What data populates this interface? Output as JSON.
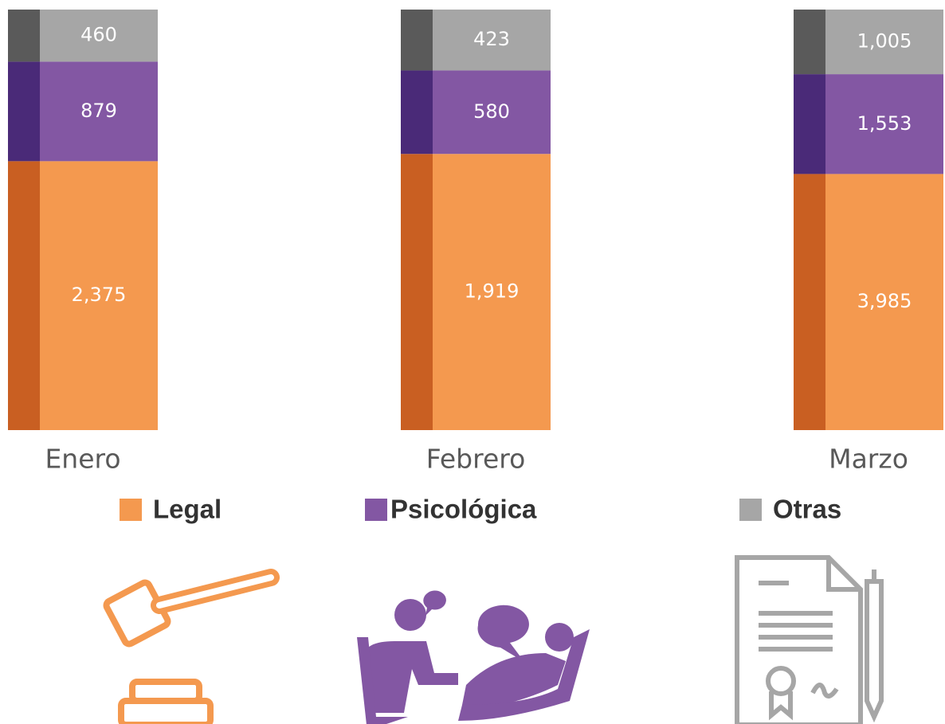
{
  "chart_data": {
    "type": "bar",
    "stacking": "percent",
    "categories": [
      "Enero",
      "Febrero",
      "Marzo"
    ],
    "series": [
      {
        "name": "Legal",
        "color": "#F4994F",
        "shade": "#C95F22",
        "values": [
          2375,
          1919,
          3985
        ],
        "value_labels": [
          "2,375",
          "1,919",
          "3,985"
        ]
      },
      {
        "name": "Psicológica",
        "color": "#8357A3",
        "shade": "#4A2A78",
        "values": [
          879,
          580,
          1553
        ],
        "value_labels": [
          "879",
          "580",
          "1,553"
        ]
      },
      {
        "name": "Otras",
        "color": "#A6A6A6",
        "shade": "#5A5A5A",
        "values": [
          460,
          423,
          1005
        ],
        "value_labels": [
          "460",
          "423",
          "1,005"
        ]
      }
    ]
  }
}
